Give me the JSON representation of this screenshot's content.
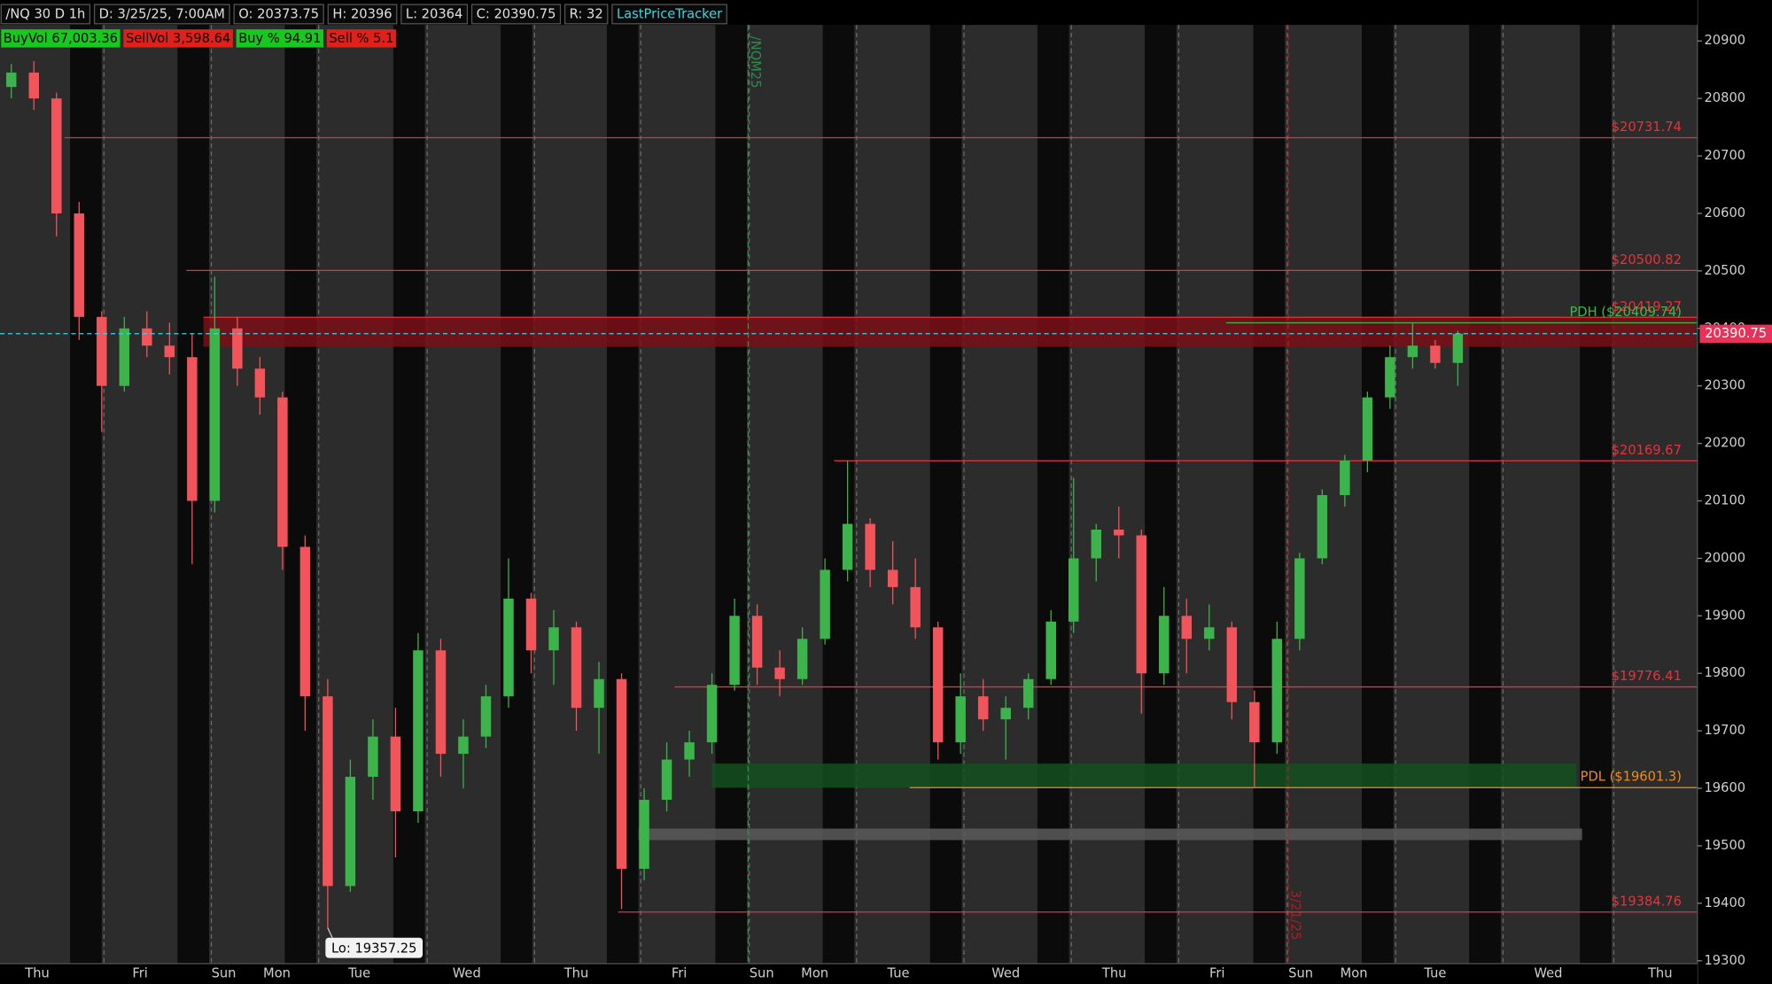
{
  "header": {
    "items": [
      "/NQ 30 D 1h",
      "D: 3/25/25, 7:00AM",
      "O: 20373.75",
      "H: 20396",
      "L: 20364",
      "C: 20390.75",
      "R: 32",
      "LastPriceTracker"
    ],
    "badges": [
      "BuyVol 67,003.36",
      "SellVol 3,598.64",
      "Buy % 94.91",
      "Sell % 5.1"
    ]
  },
  "chart_data": {
    "type": "candlestick",
    "up_color": "#3cb44b",
    "down_color": "#f2545b",
    "x": [
      0,
      1,
      2,
      3,
      4,
      5,
      6,
      7,
      8,
      9,
      10,
      11,
      12,
      13,
      14,
      15,
      16,
      17,
      18,
      19,
      20,
      21,
      22,
      23,
      24,
      25,
      26,
      27,
      28,
      29,
      30,
      31,
      32,
      33,
      34,
      35,
      36,
      37,
      38,
      39,
      40,
      41,
      42,
      43,
      44,
      45,
      46,
      47,
      48,
      49,
      50,
      51,
      52,
      53,
      54,
      55,
      56,
      57,
      58,
      59,
      60,
      61,
      62,
      63,
      64
    ],
    "open": [
      20820,
      20845,
      20800,
      20600,
      20420,
      20300,
      20400,
      20370,
      20350,
      20100,
      20400,
      20330,
      20280,
      20020,
      19760,
      19430,
      19620,
      19690,
      19560,
      19840,
      19660,
      19690,
      19760,
      19930,
      19840,
      19880,
      19740,
      19790,
      19460,
      19580,
      19650,
      19680,
      19780,
      19900,
      19810,
      19790,
      19860,
      19980,
      20060,
      19980,
      19950,
      19880,
      19680,
      19760,
      19720,
      19740,
      19790,
      19890,
      20000,
      20050,
      20040,
      19800,
      19900,
      19860,
      19880,
      19750,
      19680,
      19860,
      20000,
      20110,
      20170,
      20280,
      20350,
      20370,
      20340
    ],
    "high": [
      20860,
      20865,
      20810,
      20620,
      20430,
      20420,
      20430,
      20410,
      20390,
      20490,
      20420,
      20350,
      20290,
      20040,
      19790,
      19650,
      19720,
      19740,
      19870,
      19860,
      19720,
      19780,
      20000,
      19940,
      19910,
      19890,
      19820,
      19800,
      19600,
      19680,
      19700,
      19800,
      19930,
      19920,
      19840,
      19880,
      20000,
      20170,
      20070,
      20030,
      20000,
      19890,
      19800,
      19790,
      19760,
      19800,
      19910,
      20140,
      20060,
      20090,
      20050,
      19950,
      19930,
      19920,
      19890,
      19770,
      19890,
      20010,
      20120,
      20180,
      20290,
      20370,
      20410,
      20380,
      20396
    ],
    "low": [
      20800,
      20780,
      20560,
      20380,
      20220,
      20290,
      20350,
      20320,
      19990,
      20080,
      20300,
      20250,
      19980,
      19700,
      19357.25,
      19420,
      19580,
      19480,
      19540,
      19620,
      19600,
      19670,
      19740,
      19800,
      19780,
      19700,
      19660,
      19390,
      19440,
      19560,
      19620,
      19660,
      19770,
      19780,
      19760,
      19780,
      19850,
      19960,
      19950,
      19920,
      19860,
      19650,
      19660,
      19700,
      19650,
      19720,
      19780,
      19870,
      19960,
      20000,
      19730,
      19780,
      19800,
      19840,
      19720,
      19600,
      19660,
      19840,
      19990,
      20090,
      20150,
      20260,
      20330,
      20330,
      20300
    ],
    "close": [
      20845,
      20800,
      20600,
      20420,
      20300,
      20400,
      20370,
      20350,
      20100,
      20400,
      20330,
      20280,
      20020,
      19760,
      19430,
      19620,
      19690,
      19560,
      19840,
      19660,
      19690,
      19760,
      19930,
      19840,
      19880,
      19740,
      19790,
      19460,
      19580,
      19650,
      19680,
      19780,
      19900,
      19810,
      19790,
      19860,
      19980,
      20060,
      19980,
      19950,
      19880,
      19680,
      19760,
      19720,
      19740,
      19790,
      19890,
      20000,
      20050,
      20040,
      19800,
      19900,
      19860,
      19880,
      19750,
      19680,
      19860,
      20000,
      20110,
      20170,
      20280,
      20350,
      20370,
      20340,
      20390.75
    ],
    "xlim": [
      -0.5,
      74.6
    ],
    "ylim": [
      19295,
      20928
    ],
    "xticks": [
      {
        "value": 1.15,
        "label": "Thu"
      },
      {
        "value": 5.7,
        "label": "Fri"
      },
      {
        "value": 9.4,
        "label": "Sun"
      },
      {
        "value": 11.75,
        "label": "Mon"
      },
      {
        "value": 15.4,
        "label": "Tue"
      },
      {
        "value": 20.15,
        "label": "Wed"
      },
      {
        "value": 25,
        "label": "Thu"
      },
      {
        "value": 29.55,
        "label": "Fri"
      },
      {
        "value": 33.2,
        "label": "Sun"
      },
      {
        "value": 35.55,
        "label": "Mon"
      },
      {
        "value": 39.25,
        "label": "Tue"
      },
      {
        "value": 44,
        "label": "Wed"
      },
      {
        "value": 48.8,
        "label": "Thu"
      },
      {
        "value": 53.35,
        "label": "Fri"
      },
      {
        "value": 57.05,
        "label": "Sun"
      },
      {
        "value": 59.4,
        "label": "Mon"
      },
      {
        "value": 63,
        "label": "Tue"
      },
      {
        "value": 68,
        "label": "Wed"
      },
      {
        "value": 72.95,
        "label": "Thu"
      }
    ],
    "yticks": [
      20900,
      20800,
      20700,
      20600,
      20500,
      20400,
      20300,
      20200,
      20100,
      20000,
      19900,
      19800,
      19700,
      19600,
      19500,
      19400,
      19300
    ],
    "last_price": 20390.75,
    "levels": [
      {
        "value": 20731.74,
        "label": "$20731.74",
        "x_start": 2.35,
        "color": "#e8323a"
      },
      {
        "value": 20500.82,
        "label": "$20500.82",
        "x_start": 7.75,
        "color": "#e8323a"
      },
      {
        "value": 20419.27,
        "label": "$20419.27",
        "x_start": 8.5,
        "color": "#e8323a"
      },
      {
        "value": 20409.74,
        "label": "PDH ($20409.74)",
        "x_start": 53.75,
        "color": "#3cb94a"
      },
      {
        "value": 20169.67,
        "label": "$20169.67",
        "x_start": 36.4,
        "color": "#e8323a"
      },
      {
        "value": 19776.41,
        "label": "$19776.41",
        "x_start": 29.35,
        "color": "#e8323a"
      },
      {
        "value": 19601.3,
        "label": "PDL ($19601.3)",
        "x_start": 39.75,
        "color": "#f08c1e"
      },
      {
        "value": 19384.76,
        "label": "$19384.76",
        "x_start": 26.85,
        "color": "#e8323a"
      }
    ],
    "zones": [
      {
        "low": 20368,
        "high": 20419,
        "x0": 8.5,
        "x1": 74.5,
        "color": "#7a0f16"
      },
      {
        "low": 19601,
        "high": 19643,
        "x0": 31,
        "x1": 69.25,
        "color": "#14501e"
      },
      {
        "low": 19510,
        "high": 19530,
        "x0": 27.75,
        "x1": 69.5,
        "color": "#5a5a5a"
      }
    ],
    "vlines": [
      {
        "label": "/NQM25",
        "x": 32.6,
        "color": "#2e8b4a"
      },
      {
        "label": "3/21/25",
        "x": 56.5,
        "color": "#b01c22"
      }
    ],
    "low_note": {
      "label": "Lo: 19357.25",
      "x": 14,
      "value": 19357.25
    }
  }
}
